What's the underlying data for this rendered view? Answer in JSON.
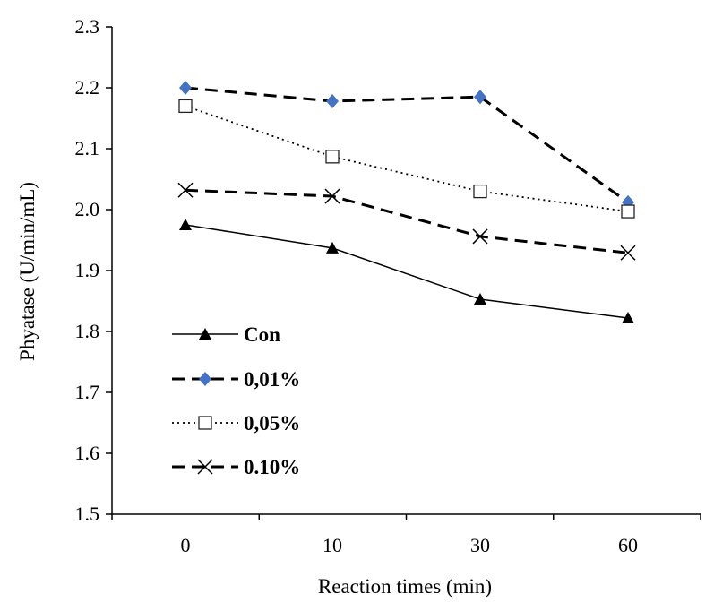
{
  "chart_data": {
    "type": "line",
    "title": "",
    "xlabel": "Reaction times (min)",
    "ylabel": "Phyatase (U/min/mL)",
    "categories": [
      "0",
      "10",
      "30",
      "60"
    ],
    "ylim": [
      1.5,
      2.3
    ],
    "yticks": [
      "1.5",
      "1.6",
      "1.7",
      "1.8",
      "1.9",
      "2.0",
      "2.1",
      "2.2",
      "2.3"
    ],
    "grid": false,
    "legend_position": "lower-left",
    "series": [
      {
        "name": "Con",
        "values": [
          1.975,
          1.937,
          1.853,
          1.822
        ],
        "line": "solid",
        "marker": "triangle",
        "color": "#000000"
      },
      {
        "name": "0,01%",
        "values": [
          2.2,
          2.178,
          2.185,
          2.012
        ],
        "line": "dashed",
        "marker": "diamond",
        "color": "#000000",
        "marker_color": "#4472C4"
      },
      {
        "name": "0,05%",
        "values": [
          2.17,
          2.087,
          2.03,
          1.997
        ],
        "line": "dotted",
        "marker": "square",
        "color": "#000000"
      },
      {
        "name": "0.10%",
        "values": [
          2.032,
          2.022,
          1.956,
          1.929
        ],
        "line": "dashed",
        "marker": "x",
        "color": "#000000"
      }
    ]
  }
}
